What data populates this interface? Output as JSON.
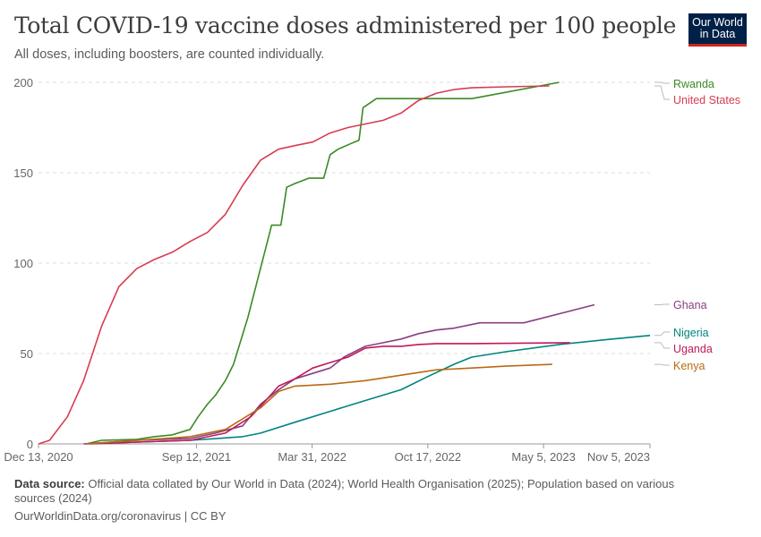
{
  "header": {
    "title": "Total COVID-19 vaccine doses administered per 100 people",
    "subtitle": "All doses, including boosters, are counted individually."
  },
  "logo": {
    "line1": "Our World",
    "line2": "in Data",
    "bg": "#002147",
    "accent": "#ce261e"
  },
  "footer": {
    "source_label": "Data source:",
    "source_text": "Official data collated by Our World in Data (2024); World Health Organisation (2025); Population based on various sources (2024)",
    "credit": "OurWorldinData.org/coronavirus | CC BY"
  },
  "chart_data": {
    "type": "line",
    "title": "Total COVID-19 vaccine doses administered per 100 people",
    "subtitle": "All doses, including boosters, are counted individually.",
    "xlabel": "",
    "ylabel": "",
    "x_ticks": [
      "Dec 13, 2020",
      "Sep 12, 2021",
      "Mar 31, 2022",
      "Oct 17, 2022",
      "May 5, 2023",
      "Nov 5, 2023"
    ],
    "x_range": [
      "2020-12-13",
      "2023-11-05"
    ],
    "y_ticks": [
      0,
      50,
      100,
      150,
      200
    ],
    "ylim": [
      0,
      200
    ],
    "grid": "horizontal dashed",
    "legend": "right, labels at line ends",
    "series": [
      {
        "name": "Rwanda",
        "color": "#3a8a23",
        "points": [
          [
            "2021-03-05",
            0
          ],
          [
            "2021-04-01",
            2
          ],
          [
            "2021-06-01",
            2.5
          ],
          [
            "2021-07-01",
            4
          ],
          [
            "2021-08-01",
            5
          ],
          [
            "2021-09-01",
            8
          ],
          [
            "2021-09-15",
            15
          ],
          [
            "2021-10-01",
            22
          ],
          [
            "2021-10-15",
            27
          ],
          [
            "2021-11-01",
            35
          ],
          [
            "2021-11-15",
            44
          ],
          [
            "2021-12-10",
            70
          ],
          [
            "2022-01-20",
            121
          ],
          [
            "2022-02-05",
            121
          ],
          [
            "2022-02-15",
            142
          ],
          [
            "2022-03-01",
            144
          ],
          [
            "2022-03-25",
            147
          ],
          [
            "2022-04-20",
            147
          ],
          [
            "2022-05-01",
            160
          ],
          [
            "2022-05-15",
            163
          ],
          [
            "2022-06-05",
            166
          ],
          [
            "2022-06-20",
            168
          ],
          [
            "2022-06-27",
            186
          ],
          [
            "2022-07-20",
            191
          ],
          [
            "2022-09-01",
            191
          ],
          [
            "2023-01-01",
            191
          ],
          [
            "2023-06-01",
            200
          ]
        ]
      },
      {
        "name": "United States",
        "color": "#d73c50",
        "points": [
          [
            "2020-12-13",
            0
          ],
          [
            "2021-01-01",
            2
          ],
          [
            "2021-02-01",
            15
          ],
          [
            "2021-03-01",
            35
          ],
          [
            "2021-04-01",
            65
          ],
          [
            "2021-05-01",
            87
          ],
          [
            "2021-06-01",
            97
          ],
          [
            "2021-07-01",
            102
          ],
          [
            "2021-08-01",
            106
          ],
          [
            "2021-09-01",
            112
          ],
          [
            "2021-10-01",
            117
          ],
          [
            "2021-11-01",
            127
          ],
          [
            "2021-12-01",
            143
          ],
          [
            "2022-01-01",
            157
          ],
          [
            "2022-02-01",
            163
          ],
          [
            "2022-03-01",
            165
          ],
          [
            "2022-04-01",
            167
          ],
          [
            "2022-05-01",
            172
          ],
          [
            "2022-06-01",
            175
          ],
          [
            "2022-07-01",
            177
          ],
          [
            "2022-08-01",
            179
          ],
          [
            "2022-09-01",
            183
          ],
          [
            "2022-10-01",
            190
          ],
          [
            "2022-11-01",
            194
          ],
          [
            "2022-12-01",
            196
          ],
          [
            "2023-01-01",
            197
          ],
          [
            "2023-03-01",
            197.5
          ],
          [
            "2023-05-15",
            198
          ]
        ]
      },
      {
        "name": "Ghana",
        "color": "#883f7f",
        "points": [
          [
            "2021-03-01",
            0
          ],
          [
            "2021-06-01",
            2
          ],
          [
            "2021-09-01",
            3
          ],
          [
            "2021-10-15",
            6
          ],
          [
            "2021-12-01",
            10
          ],
          [
            "2022-01-01",
            22
          ],
          [
            "2022-02-01",
            30
          ],
          [
            "2022-03-01",
            36
          ],
          [
            "2022-04-01",
            39
          ],
          [
            "2022-05-01",
            42
          ],
          [
            "2022-05-25",
            48
          ],
          [
            "2022-07-01",
            54
          ],
          [
            "2022-08-01",
            56
          ],
          [
            "2022-09-01",
            58
          ],
          [
            "2022-10-01",
            61
          ],
          [
            "2022-11-01",
            63
          ],
          [
            "2022-12-01",
            64
          ],
          [
            "2023-01-15",
            67
          ],
          [
            "2023-04-01",
            67
          ],
          [
            "2023-08-01",
            77
          ]
        ]
      },
      {
        "name": "Nigeria",
        "color": "#00847e",
        "points": [
          [
            "2021-03-05",
            0
          ],
          [
            "2021-06-01",
            1
          ],
          [
            "2021-09-01",
            2
          ],
          [
            "2021-12-01",
            4
          ],
          [
            "2022-01-01",
            6
          ],
          [
            "2022-03-01",
            12
          ],
          [
            "2022-05-01",
            18
          ],
          [
            "2022-07-01",
            24
          ],
          [
            "2022-09-01",
            30
          ],
          [
            "2022-10-15",
            37
          ],
          [
            "2022-12-01",
            44
          ],
          [
            "2023-01-01",
            48
          ],
          [
            "2023-03-01",
            51
          ],
          [
            "2023-06-01",
            55
          ],
          [
            "2023-09-01",
            58
          ],
          [
            "2023-11-05",
            60
          ]
        ]
      },
      {
        "name": "Uganda",
        "color": "#c2185b",
        "points": [
          [
            "2021-03-10",
            0
          ],
          [
            "2021-06-01",
            1
          ],
          [
            "2021-09-01",
            2
          ],
          [
            "2021-11-01",
            6
          ],
          [
            "2021-12-15",
            15
          ],
          [
            "2022-01-10",
            24
          ],
          [
            "2022-02-01",
            32
          ],
          [
            "2022-03-01",
            36
          ],
          [
            "2022-04-01",
            42
          ],
          [
            "2022-05-01",
            45
          ],
          [
            "2022-06-01",
            48
          ],
          [
            "2022-07-01",
            53
          ],
          [
            "2022-08-01",
            54
          ],
          [
            "2022-09-01",
            54
          ],
          [
            "2022-10-01",
            55
          ],
          [
            "2022-11-01",
            55.5
          ],
          [
            "2023-01-01",
            55.5
          ],
          [
            "2023-06-20",
            56
          ]
        ]
      },
      {
        "name": "Kenya",
        "color": "#b96a14",
        "points": [
          [
            "2021-03-05",
            0
          ],
          [
            "2021-06-01",
            2
          ],
          [
            "2021-09-01",
            4
          ],
          [
            "2021-11-01",
            8
          ],
          [
            "2022-01-01",
            20
          ],
          [
            "2022-02-01",
            29
          ],
          [
            "2022-03-01",
            32
          ],
          [
            "2022-05-01",
            33
          ],
          [
            "2022-07-01",
            35
          ],
          [
            "2022-09-01",
            38
          ],
          [
            "2022-11-01",
            41
          ],
          [
            "2023-01-01",
            42
          ],
          [
            "2023-03-01",
            43
          ],
          [
            "2023-05-20",
            44
          ]
        ]
      }
    ]
  }
}
